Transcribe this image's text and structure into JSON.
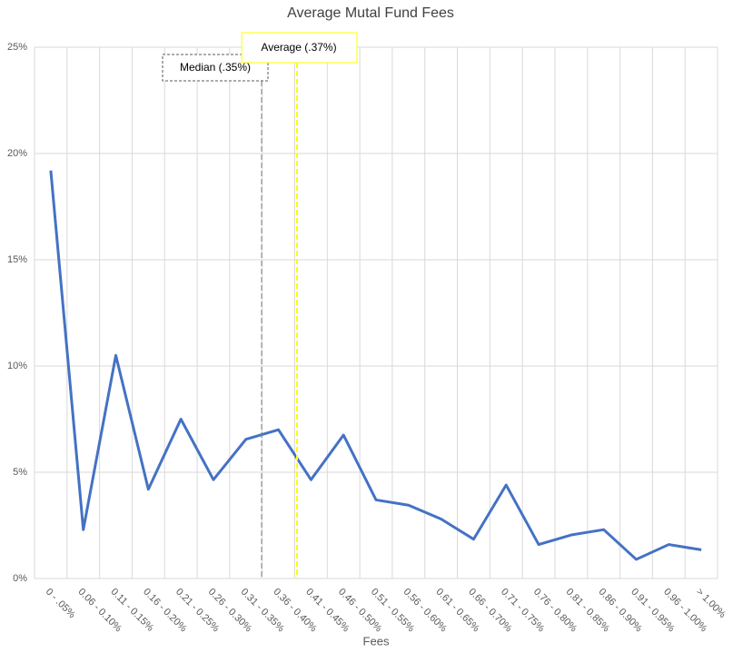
{
  "chart_data": {
    "type": "line",
    "title": "Average Mutal Fund Fees",
    "x_label": "Fees",
    "categories": [
      "0 - .05%",
      "0.06 - 0.10%",
      "0.11 - 0.15%",
      "0.16 - 0.20%",
      "0.21 - 0.25%",
      "0.26 - 0.30%",
      "0.31 - 0.35%",
      "0.36 - 0.40%",
      "0.41 - 0.45%",
      "0.46 - 0.50%",
      "0.51 - 0.55%",
      "0.56 - 0.60%",
      "0.61 - 0.65%",
      "0.66 - 0.70%",
      "0.71 - 0.75%",
      "0.76 - 0.80%",
      "0.81 - 0.85%",
      "0.86 - 0.90%",
      "0.91 - 0.95%",
      "0.96 - 1.00%",
      "> 1.00%"
    ],
    "values": [
      19.2,
      2.3,
      10.5,
      4.2,
      7.5,
      4.65,
      6.55,
      7.0,
      4.65,
      6.75,
      3.7,
      3.45,
      2.8,
      1.85,
      4.4,
      1.6,
      2.05,
      2.3,
      0.9,
      1.6,
      1.35
    ],
    "color": "#4472c4",
    "ylim": [
      0,
      25
    ],
    "yticks": [
      {
        "value": 0,
        "label": "0%"
      },
      {
        "value": 5,
        "label": "5%"
      },
      {
        "value": 10,
        "label": "10%"
      },
      {
        "value": 15,
        "label": "15%"
      },
      {
        "value": 20,
        "label": "20%"
      },
      {
        "value": 25,
        "label": "25%"
      }
    ],
    "grid": true,
    "annotations": [
      {
        "text": "Median (.35%)",
        "color": "#7f7f7f"
      },
      {
        "text": "Average (.37%)",
        "color": "#ffff00"
      }
    ]
  }
}
